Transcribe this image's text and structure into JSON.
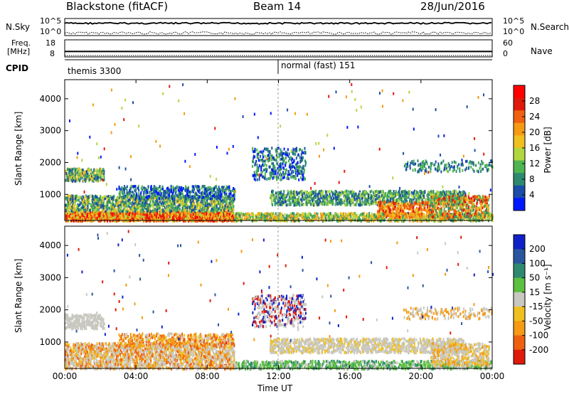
{
  "header": {
    "station": "Blackstone (fitACF)",
    "beam": "Beam 14",
    "date": "28/Jun/2016"
  },
  "top_panels": {
    "nsky_label": "N.Sky",
    "nsearch_label": "N.Search",
    "nsky_ticks": [
      "10^5",
      "10^0"
    ],
    "freq_label_line1": "Freq.",
    "freq_label_line2": "[MHz]",
    "freq_ticks": [
      "18",
      "8"
    ],
    "nave_label": "Nave",
    "nave_ticks": [
      "60",
      "0"
    ],
    "cpid_label": "CPID",
    "cpid_segments": [
      {
        "name": "themis 3300",
        "start_hour": 0,
        "end_hour": 12
      },
      {
        "name": "normal (fast) 151",
        "start_hour": 12,
        "end_hour": 24
      }
    ],
    "nsky_level": 0.72,
    "nsearch_level": 0.15,
    "freq_level": 0.32,
    "nave_level": 0.08
  },
  "chart_data": [
    {
      "type": "heatmap",
      "name": "power",
      "ylabel": "Slant Range [km]",
      "xlabel": "",
      "ylim": [
        180,
        4600
      ],
      "yticks": [
        "1000",
        "2000",
        "3000",
        "4000"
      ],
      "colorbar": {
        "label": "Power [dB]",
        "ticks": [
          "4",
          "8",
          "12",
          "16",
          "20",
          "24",
          "28"
        ],
        "colors": [
          "#0018ff",
          "#1a4ea8",
          "#2e8a6e",
          "#4fb550",
          "#b2d640",
          "#f0c020",
          "#f59a14",
          "#ef6010",
          "#e01a0a",
          "#ff0000"
        ]
      }
    },
    {
      "type": "heatmap",
      "name": "velocity",
      "ylabel": "Slant Range [km]",
      "xlabel": "Time UT",
      "ylim": [
        180,
        4600
      ],
      "yticks": [
        "1000",
        "2000",
        "3000",
        "4000"
      ],
      "xticks": [
        "00:00",
        "04:00",
        "08:00",
        "12:00",
        "16:00",
        "20:00",
        "00:00"
      ],
      "xlim": [
        0,
        24
      ],
      "colorbar": {
        "label": "Velocity [m s⁻¹]",
        "ticks": [
          "200",
          "100",
          "50",
          "15",
          "-15",
          "-50",
          "-100",
          "-200"
        ],
        "colors": [
          "#1020c8",
          "#2a56a0",
          "#2e8a6e",
          "#5cc040",
          "#c8c8c0",
          "#f0c020",
          "#f59a14",
          "#ef6010",
          "#e01a0a"
        ]
      }
    }
  ]
}
